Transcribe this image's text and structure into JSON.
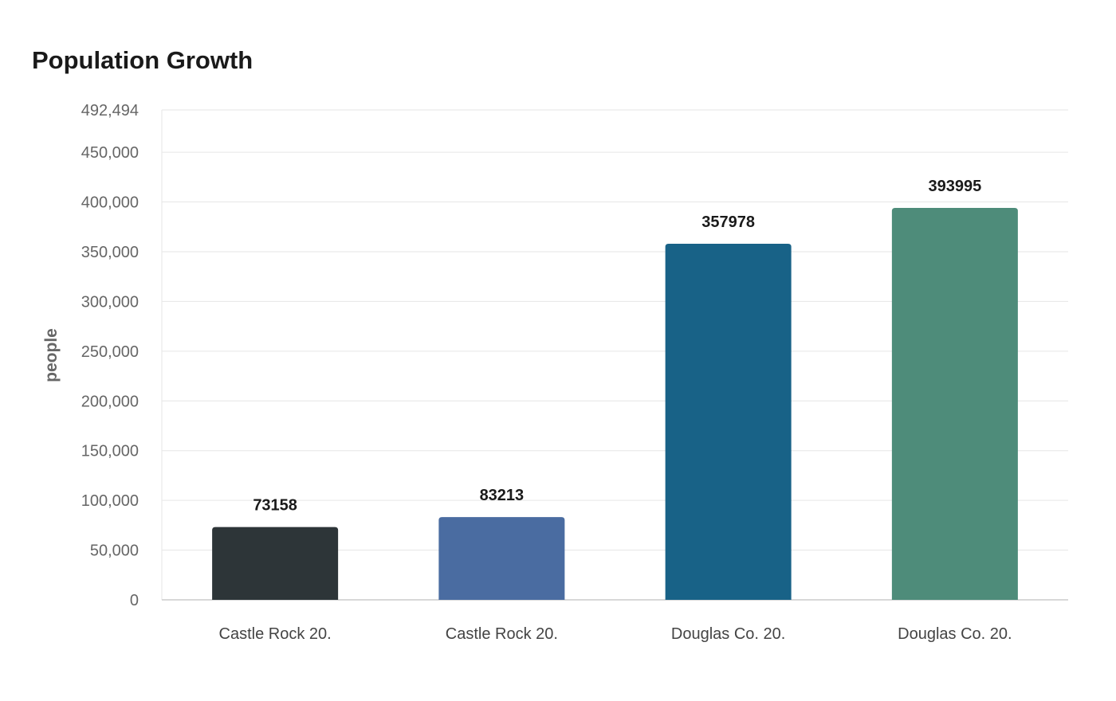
{
  "chart_data": {
    "type": "bar",
    "title": "Population Growth",
    "xlabel": "",
    "ylabel": "people",
    "categories": [
      "Castle Rock 20.",
      "Castle Rock 20.",
      "Douglas Co. 20.",
      "Douglas Co. 20."
    ],
    "values": [
      73158,
      83213,
      357978,
      393995
    ],
    "data_labels": [
      "73158",
      "83213",
      "357978",
      "393995"
    ],
    "colors": [
      "#2d3538",
      "#4a6ca1",
      "#186287",
      "#4e8c7a"
    ],
    "ylim": [
      0,
      492494
    ],
    "y_ticks": [
      0,
      50000,
      100000,
      150000,
      200000,
      250000,
      300000,
      350000,
      400000,
      450000,
      492494
    ],
    "y_tick_labels": [
      "0",
      "50,000",
      "100,000",
      "150,000",
      "200,000",
      "250,000",
      "300,000",
      "350,000",
      "400,000",
      "450,000",
      "492,494"
    ],
    "grid": true,
    "legend": "none"
  }
}
